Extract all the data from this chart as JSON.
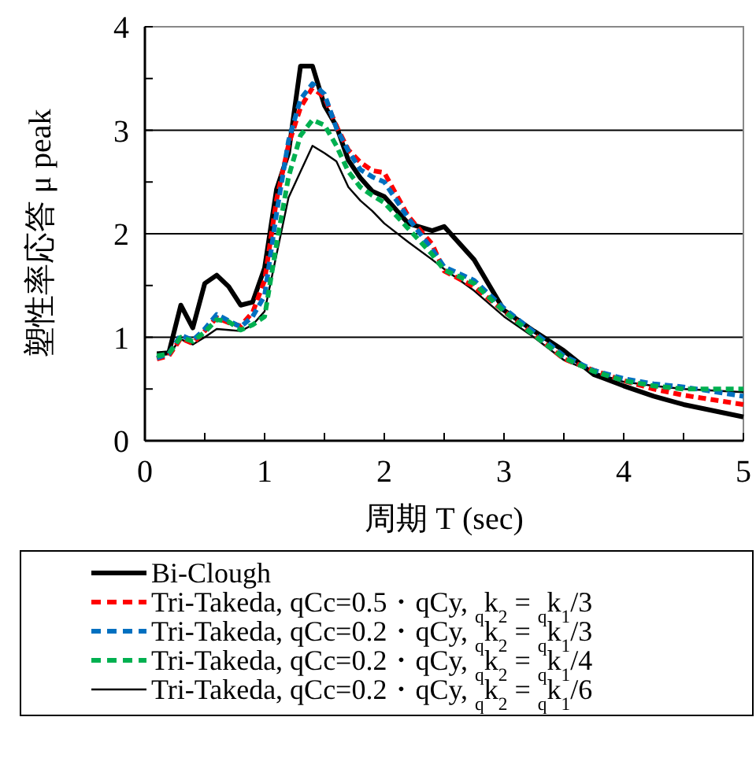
{
  "chart_data": {
    "type": "line",
    "xlabel": "周期 T (sec)",
    "ylabel": "塑性率応答 μ peak",
    "x": [
      0.1,
      0.2,
      0.3,
      0.4,
      0.5,
      0.6,
      0.7,
      0.8,
      0.9,
      1.0,
      1.1,
      1.2,
      1.3,
      1.4,
      1.5,
      1.6,
      1.7,
      1.8,
      1.9,
      2.0,
      2.2,
      2.4,
      2.5,
      2.75,
      3.0,
      3.25,
      3.5,
      3.75,
      4.0,
      4.25,
      4.5,
      5.0
    ],
    "series": [
      {
        "name": "Bi-Clough",
        "color": "#000000",
        "line_style": "solid",
        "values": [
          0.84,
          0.85,
          1.31,
          1.09,
          1.52,
          1.6,
          1.49,
          1.31,
          1.34,
          1.67,
          2.43,
          2.78,
          3.62,
          3.62,
          3.24,
          3.04,
          2.71,
          2.54,
          2.41,
          2.36,
          2.1,
          2.03,
          2.07,
          1.75,
          1.26,
          1.06,
          0.87,
          0.64,
          0.53,
          0.43,
          0.35,
          0.23
        ]
      },
      {
        "name": "Tri-Takeda, qCc=0.5・qCy, $_{q}$k$_{2}$ = $_{q}$k$_{1}$/3",
        "color": "#ff0000",
        "line_style": "dashed",
        "values": [
          0.79,
          0.82,
          0.99,
          0.94,
          1.06,
          1.19,
          1.14,
          1.11,
          1.24,
          1.55,
          2.33,
          2.86,
          3.22,
          3.41,
          3.32,
          3.04,
          2.81,
          2.69,
          2.61,
          2.59,
          2.17,
          1.9,
          1.64,
          1.49,
          1.25,
          1.03,
          0.79,
          0.68,
          0.58,
          0.5,
          0.44,
          0.35
        ]
      },
      {
        "name": "Tri-Takeda, qCc=0.2・qCy, $_{q}$k$_{2}$ = $_{q}$k$_{1}$/3",
        "color": "#0070c0",
        "line_style": "dashed",
        "values": [
          0.8,
          0.84,
          1.02,
          0.97,
          1.08,
          1.22,
          1.16,
          1.1,
          1.2,
          1.4,
          2.2,
          2.9,
          3.3,
          3.45,
          3.35,
          3.02,
          2.8,
          2.62,
          2.55,
          2.5,
          2.15,
          1.85,
          1.68,
          1.55,
          1.28,
          1.05,
          0.82,
          0.68,
          0.6,
          0.55,
          0.52,
          0.43
        ]
      },
      {
        "name": "Tri-Takeda, qCc=0.2・qCy, $_{q}$k$_{2}$ = $_{q}$k$_{1}$/4",
        "color": "#00b050",
        "line_style": "dashed",
        "values": [
          0.82,
          0.84,
          1.0,
          0.96,
          1.05,
          1.17,
          1.15,
          1.07,
          1.12,
          1.2,
          1.9,
          2.55,
          2.95,
          3.1,
          3.05,
          2.85,
          2.6,
          2.45,
          2.37,
          2.3,
          2.05,
          1.8,
          1.65,
          1.52,
          1.25,
          1.02,
          0.8,
          0.67,
          0.58,
          0.53,
          0.5,
          0.5
        ]
      },
      {
        "name": "Tri-Takeda, qCc=0.2・qCy, $_{q}$k$_{2}$ = $_{q}$k$_{1}$/6",
        "color": "#000000",
        "line_style": "solid",
        "values": [
          0.82,
          0.84,
          0.98,
          0.93,
          1.0,
          1.08,
          1.07,
          1.06,
          1.12,
          1.25,
          1.8,
          2.35,
          2.6,
          2.85,
          2.78,
          2.7,
          2.45,
          2.32,
          2.22,
          2.1,
          1.92,
          1.75,
          1.66,
          1.45,
          1.2,
          1.0,
          0.78,
          0.66,
          0.57,
          0.53,
          0.5,
          0.47
        ]
      }
    ],
    "xlim": [
      0,
      5
    ],
    "ylim": [
      0,
      4
    ],
    "xticks": [
      0,
      {
        "value": 0.5,
        "label": null
      },
      1,
      {
        "value": 1.5,
        "label": null
      },
      2,
      {
        "value": 2.5,
        "label": null
      },
      3,
      {
        "value": 3.5,
        "label": null
      },
      4,
      {
        "value": 4.5,
        "label": null
      },
      5
    ],
    "yticks": [
      0,
      {
        "value": 0.5,
        "label": null
      },
      1,
      {
        "value": 1.5,
        "label": null
      },
      2,
      {
        "value": 2.5,
        "label": null
      },
      3,
      {
        "value": 3.5,
        "label": null
      },
      4
    ],
    "grid": "y",
    "legend": "bottom",
    "marker": "none"
  }
}
